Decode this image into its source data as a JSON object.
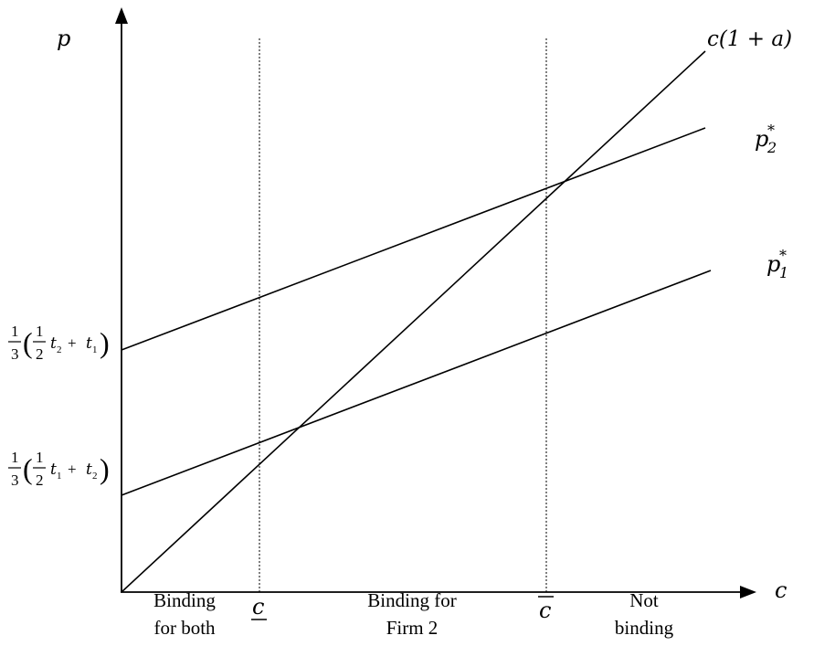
{
  "diagram": {
    "y_axis_label": "p",
    "x_axis_label": "c",
    "line_labels": {
      "cost_line": "c(1 + a)",
      "p2_star": {
        "base": "p",
        "sub": "2",
        "sup": "*"
      },
      "p1_star": {
        "base": "p",
        "sub": "1",
        "sup": "*"
      }
    },
    "intercept_labels": {
      "upper": {
        "prefix_num": "1",
        "prefix_den": "3",
        "inner_num": "1",
        "inner_den": "2",
        "inner_var": "t",
        "inner_sub": "2",
        "plus_var": "t",
        "plus_sub": "1"
      },
      "lower": {
        "prefix_num": "1",
        "prefix_den": "3",
        "inner_num": "1",
        "inner_den": "2",
        "inner_var": "t",
        "inner_sub": "1",
        "plus_var": "t",
        "plus_sub": "2"
      }
    },
    "thresholds": {
      "lower": "c",
      "upper": "c"
    },
    "regions": [
      {
        "line1": "Binding",
        "line2": "for both"
      },
      {
        "line1": "Binding for",
        "line2": "Firm 2"
      },
      {
        "line1": "Not",
        "line2": "binding"
      }
    ]
  }
}
